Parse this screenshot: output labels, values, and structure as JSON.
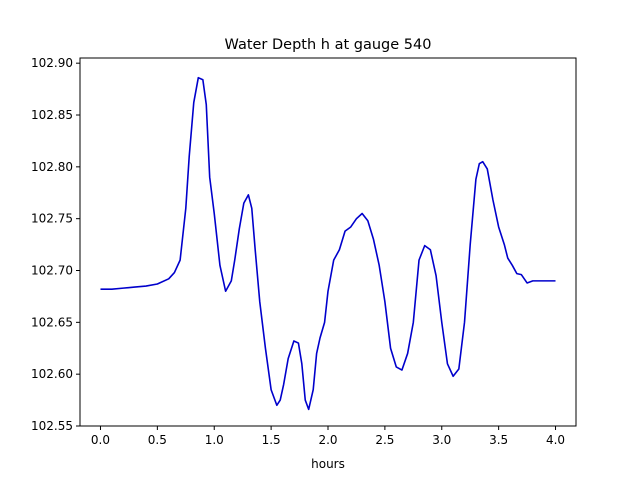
{
  "chart_data": {
    "type": "line",
    "title": "Water Depth h at gauge 540",
    "xlabel": "hours",
    "ylabel": "",
    "xlim": [
      -0.18,
      4.18
    ],
    "ylim": [
      102.55,
      102.905
    ],
    "xticks": [
      {
        "value": 0.0,
        "label": "0.0"
      },
      {
        "value": 0.5,
        "label": "0.5"
      },
      {
        "value": 1.0,
        "label": "1.0"
      },
      {
        "value": 1.5,
        "label": "1.5"
      },
      {
        "value": 2.0,
        "label": "2.0"
      },
      {
        "value": 2.5,
        "label": "2.5"
      },
      {
        "value": 3.0,
        "label": "3.0"
      },
      {
        "value": 3.5,
        "label": "3.5"
      },
      {
        "value": 4.0,
        "label": "4.0"
      }
    ],
    "yticks": [
      {
        "value": 102.55,
        "label": "102.55"
      },
      {
        "value": 102.6,
        "label": "102.60"
      },
      {
        "value": 102.65,
        "label": "102.65"
      },
      {
        "value": 102.7,
        "label": "102.70"
      },
      {
        "value": 102.75,
        "label": "102.75"
      },
      {
        "value": 102.8,
        "label": "102.80"
      },
      {
        "value": 102.85,
        "label": "102.85"
      },
      {
        "value": 102.9,
        "label": "102.90"
      }
    ],
    "grid": false,
    "legend": "none",
    "series": [
      {
        "color": "#0000cc",
        "x": [
          0.0,
          0.1,
          0.2,
          0.3,
          0.4,
          0.5,
          0.6,
          0.65,
          0.7,
          0.75,
          0.78,
          0.82,
          0.86,
          0.9,
          0.93,
          0.96,
          1.0,
          1.05,
          1.1,
          1.15,
          1.18,
          1.22,
          1.26,
          1.3,
          1.33,
          1.36,
          1.4,
          1.45,
          1.5,
          1.55,
          1.58,
          1.61,
          1.65,
          1.7,
          1.74,
          1.77,
          1.8,
          1.83,
          1.87,
          1.9,
          1.93,
          1.97,
          2.0,
          2.05,
          2.1,
          2.15,
          2.2,
          2.25,
          2.3,
          2.35,
          2.4,
          2.45,
          2.5,
          2.55,
          2.6,
          2.65,
          2.7,
          2.75,
          2.8,
          2.85,
          2.9,
          2.95,
          3.0,
          3.05,
          3.1,
          3.15,
          3.2,
          3.25,
          3.3,
          3.33,
          3.36,
          3.4,
          3.45,
          3.5,
          3.55,
          3.58,
          3.62,
          3.66,
          3.7,
          3.75,
          3.8,
          3.85,
          3.9,
          3.92,
          3.95,
          3.97,
          4.0
        ],
        "y": [
          102.682,
          102.682,
          102.683,
          102.684,
          102.685,
          102.687,
          102.692,
          102.698,
          102.71,
          102.76,
          102.81,
          102.862,
          102.886,
          102.884,
          102.86,
          102.79,
          102.755,
          102.705,
          102.68,
          102.69,
          102.71,
          102.74,
          102.765,
          102.773,
          102.76,
          102.72,
          102.67,
          102.625,
          102.585,
          102.57,
          102.575,
          102.59,
          102.615,
          102.632,
          102.63,
          102.61,
          102.575,
          102.566,
          102.585,
          102.62,
          102.635,
          102.65,
          102.68,
          102.71,
          102.72,
          102.738,
          102.742,
          102.75,
          102.755,
          102.748,
          102.73,
          102.705,
          102.67,
          102.625,
          102.607,
          102.604,
          102.62,
          102.65,
          102.71,
          102.724,
          102.72,
          102.695,
          102.65,
          102.61,
          102.598,
          102.605,
          102.65,
          102.725,
          102.788,
          102.803,
          102.805,
          102.798,
          102.768,
          102.742,
          102.725,
          102.712,
          102.705,
          102.697,
          102.696,
          102.688,
          102.69,
          102.69,
          102.69,
          102.69,
          102.69,
          102.69,
          102.69
        ]
      }
    ]
  }
}
